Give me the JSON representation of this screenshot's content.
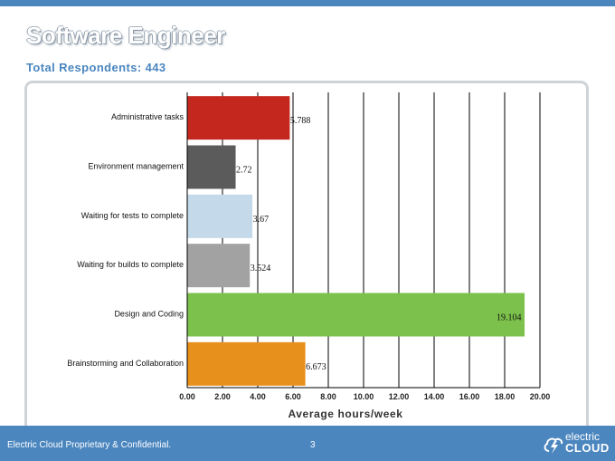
{
  "slide": {
    "title": "Software Engineer",
    "subtitle": "Total Respondents: 443"
  },
  "footer": {
    "text": "Electric Cloud Proprietary & Confidential.",
    "page_number": "3",
    "logo_top": "electric",
    "logo_bottom": "CLOUD"
  },
  "colors": {
    "accent": "#4b86bf"
  },
  "chart_data": {
    "type": "bar",
    "orientation": "horizontal",
    "categories": [
      "Administrative tasks",
      "Environment management",
      "Waiting for tests to complete",
      "Waiting for builds to complete",
      "Design and Coding",
      "Brainstorming and Collaboration"
    ],
    "values": [
      5.788,
      2.72,
      3.67,
      3.524,
      19.104,
      6.673
    ],
    "value_labels": [
      "5.788",
      "2.72",
      "3.67",
      "3.524",
      "19.104",
      "6.673"
    ],
    "colors": [
      "#c3271d",
      "#5b5b5b",
      "#c4d9e9",
      "#a2a2a2",
      "#7bc14b",
      "#e8901c"
    ],
    "xlabel": "Average hours/week",
    "xlim": [
      0,
      20
    ],
    "xticks": [
      0,
      2,
      4,
      6,
      8,
      10,
      12,
      14,
      16,
      18,
      20
    ],
    "xtick_labels": [
      "0.00",
      "2.00",
      "4.00",
      "6.00",
      "8.00",
      "10.00",
      "12.00",
      "14.00",
      "16.00",
      "18.00",
      "20.00"
    ],
    "grid": "vertical",
    "legend": "none"
  }
}
